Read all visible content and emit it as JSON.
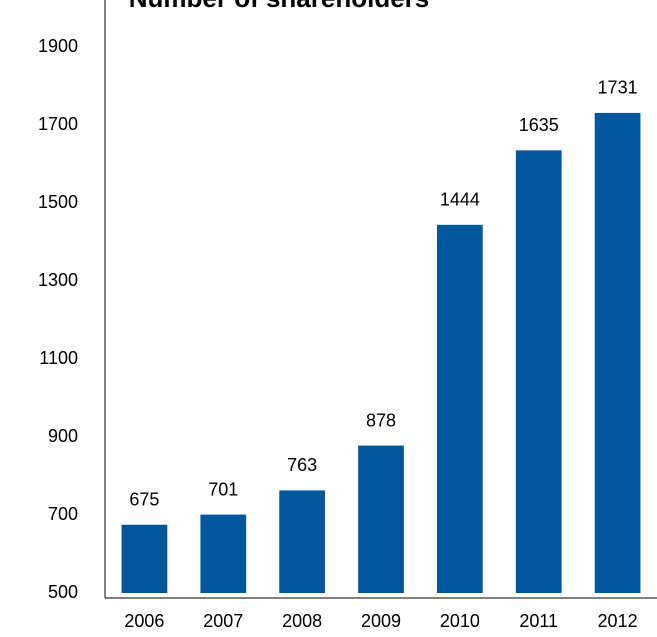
{
  "chart_data": {
    "type": "bar",
    "title": "Number of shareholders",
    "categories": [
      "2006",
      "2007",
      "2008",
      "2009",
      "2010",
      "2011",
      "2012"
    ],
    "values": [
      675,
      701,
      763,
      878,
      1444,
      1635,
      1731
    ],
    "color": "#02569b",
    "ylim": [
      500,
      2000
    ],
    "yticks": [
      500,
      700,
      900,
      1100,
      1300,
      1500,
      1700,
      1900
    ],
    "grid": false,
    "value_labels_shown": true
  }
}
